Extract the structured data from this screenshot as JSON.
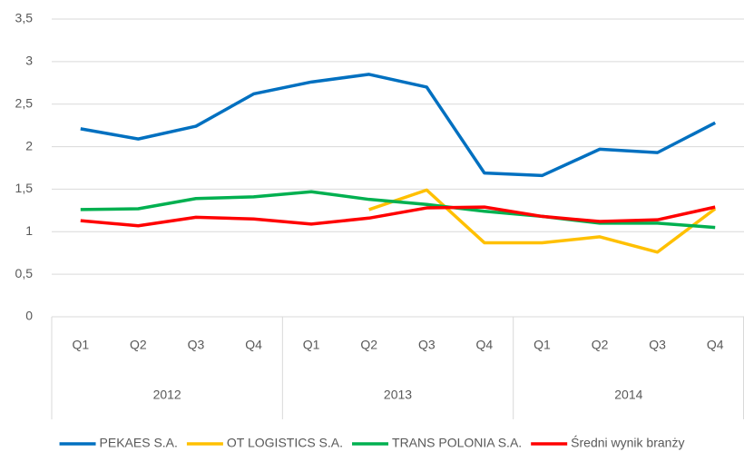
{
  "chart_data": {
    "type": "line",
    "categories": [
      "Q1",
      "Q2",
      "Q3",
      "Q4",
      "Q1",
      "Q2",
      "Q3",
      "Q4",
      "Q1",
      "Q2",
      "Q3",
      "Q4"
    ],
    "groups": [
      "2012",
      "2013",
      "2014"
    ],
    "series": [
      {
        "name": "PEKAES S.A.",
        "color": "#0070c0",
        "values": [
          2.21,
          2.09,
          2.24,
          2.62,
          2.76,
          2.85,
          2.7,
          1.69,
          1.66,
          1.97,
          1.93,
          2.28
        ]
      },
      {
        "name": "OT LOGISTICS S.A.",
        "color": "#ffc000",
        "values": [
          null,
          null,
          null,
          null,
          null,
          1.26,
          1.49,
          0.87,
          0.87,
          0.94,
          0.76,
          1.27
        ]
      },
      {
        "name": "TRANS POLONIA S.A.",
        "color": "#00b050",
        "values": [
          1.26,
          1.27,
          1.39,
          1.41,
          1.47,
          1.38,
          1.32,
          1.24,
          1.18,
          1.1,
          1.1,
          1.05
        ]
      },
      {
        "name": "Średni wynik branży",
        "color": "#ff0000",
        "values": [
          1.13,
          1.07,
          1.17,
          1.15,
          1.09,
          1.16,
          1.28,
          1.29,
          1.18,
          1.12,
          1.14,
          1.29
        ]
      }
    ],
    "ylim": [
      0,
      3.5
    ],
    "yticks": [
      0,
      {
        "value": 0.5,
        "label": "0,5"
      },
      1,
      {
        "value": 1.5,
        "label": "1,5"
      },
      2,
      {
        "value": 2.5,
        "label": "2,5"
      },
      3,
      {
        "value": 3.5,
        "label": "3,5"
      }
    ],
    "grid": true
  }
}
